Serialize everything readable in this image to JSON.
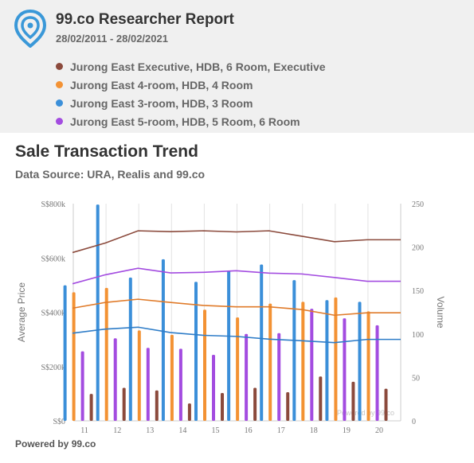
{
  "header": {
    "title": "99.co Researcher Report",
    "date_range": "28/02/2011 - 28/02/2021",
    "legend": [
      {
        "label": "Jurong East Executive, HDB, 6 Room, Executive",
        "color": "#8b4a3c"
      },
      {
        "label": "Jurong East 4-room, HDB, 4 Room",
        "color": "#f39234"
      },
      {
        "label": "Jurong East 3-room, HDB, 3 Room",
        "color": "#3b8fd9"
      },
      {
        "label": "Jurong East 5-room, HDB, 5 Room, 6 Room",
        "color": "#a34ce0"
      }
    ]
  },
  "section": {
    "title": "Sale Transaction Trend",
    "source": "Data Source: URA, Realis and 99.co"
  },
  "footer": {
    "powered_by": "Powered by 99.co"
  },
  "chart_data": {
    "type": "bar",
    "watermark": "Powered by 99.co",
    "categories": [
      "11",
      "12",
      "13",
      "14",
      "15",
      "16",
      "17",
      "18",
      "19",
      "20"
    ],
    "ylabel": "Average Price",
    "ylabel_right": "Volume",
    "ylim": [
      0,
      800000
    ],
    "ylim_right": [
      0,
      250
    ],
    "yticks": [
      0,
      200000,
      400000,
      600000,
      800000
    ],
    "ytick_labels": [
      "S$0",
      "S$200k",
      "S$400k",
      "S$600k",
      "S$800k"
    ],
    "yticks_right": [
      0,
      50,
      100,
      150,
      200,
      250
    ],
    "grid": "vertical",
    "volume_series": [
      {
        "name": "Jurong East 3-room, HDB, 3 Room",
        "color": "#3b8fd9",
        "values": [
          156,
          249,
          165,
          186,
          160,
          173,
          180,
          162,
          139,
          137
        ]
      },
      {
        "name": "Jurong East 4-room, HDB, 4 Room",
        "color": "#f39234",
        "values": [
          148,
          153,
          104,
          99,
          128,
          119,
          135,
          137,
          142,
          126
        ]
      },
      {
        "name": "Jurong East 5-room, HDB, 5 Room, 6 Room",
        "color": "#a34ce0",
        "values": [
          80,
          95,
          84,
          83,
          76,
          100,
          101,
          129,
          118,
          110
        ]
      },
      {
        "name": "Jurong East Executive, HDB, 6 Room, Executive",
        "color": "#8b4a3c",
        "values": [
          31,
          38,
          35,
          20,
          32,
          38,
          33,
          51,
          45,
          37
        ]
      }
    ],
    "price_series": [
      {
        "name": "Jurong East Executive, HDB, 6 Room, Executive",
        "color": "#8b4a3c",
        "values": [
          620000,
          655000,
          700000,
          697000,
          700000,
          696000,
          700000,
          680000,
          660000,
          667000
        ]
      },
      {
        "name": "Jurong East 5-room, HDB, 5 Room, 6 Room",
        "color": "#a34ce0",
        "values": [
          505000,
          538000,
          562000,
          545000,
          547000,
          553000,
          544000,
          541000,
          528000,
          514000
        ]
      },
      {
        "name": "Jurong East 4-room, HDB, 4 Room",
        "color": "#e07b2a",
        "values": [
          415000,
          436000,
          448000,
          436000,
          425000,
          420000,
          420000,
          410000,
          389000,
          398000
        ]
      },
      {
        "name": "Jurong East 3-room, HDB, 3 Room",
        "color": "#2f7dc8",
        "values": [
          323000,
          338000,
          345000,
          325000,
          315000,
          311000,
          301000,
          295000,
          288000,
          300000
        ]
      }
    ]
  }
}
